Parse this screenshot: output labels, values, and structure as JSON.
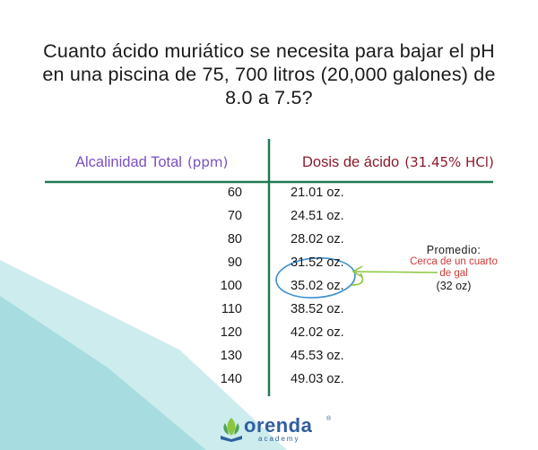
{
  "title": {
    "line1": "Cuanto ácido muriático se necesita para bajar el pH",
    "line2": "en una piscina de 75, 700 litros (20,000 galones) de",
    "line3": "8.0 a 7.5?"
  },
  "headers": {
    "alkalinity": "Alcalinidad Total",
    "alkalinity_unit": "(ppm)",
    "dose": "Dosis de ácido",
    "dose_unit": "(31.45% HCl)"
  },
  "rows": [
    {
      "alk": "60",
      "dose": "21.01 oz."
    },
    {
      "alk": "70",
      "dose": "24.51 oz."
    },
    {
      "alk": "80",
      "dose": "28.02 oz."
    },
    {
      "alk": "90",
      "dose": "31.52 oz."
    },
    {
      "alk": "100",
      "dose": "35.02 oz."
    },
    {
      "alk": "110",
      "dose": "38.52 oz."
    },
    {
      "alk": "120",
      "dose": "42.02 oz."
    },
    {
      "alk": "130",
      "dose": "45.53 oz."
    },
    {
      "alk": "140",
      "dose": "49.03 oz."
    }
  ],
  "note": {
    "title": "Promedio:",
    "line1": "Cerca de un cuarto",
    "line2": "de gal",
    "line3": "(32 oz)"
  },
  "logo": {
    "name": "orenda",
    "sub": "academy",
    "reg": "®"
  },
  "colors": {
    "table_lines": "#1f7a52",
    "header_left": "#7a4fc0",
    "header_right": "#8b1a2b",
    "highlight_circle": "#3a8fd0",
    "arrow": "#8cc63f",
    "note_red": "#d03a3a",
    "bg_teal": "#bfe6e8"
  }
}
